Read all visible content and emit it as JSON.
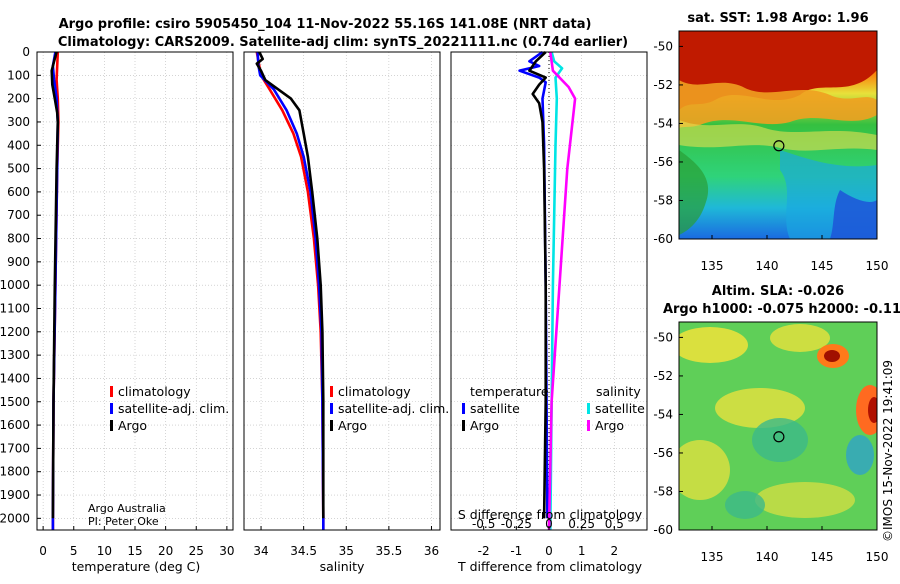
{
  "header": {
    "title_line1": "Argo profile: csiro 5905450_104 11-Nov-2022 55.16S 141.08E (NRT data)",
    "title_line2": "Climatology: CARS2009. Satellite-adj clim: synTS_20221111.nc (0.74d earlier)"
  },
  "colors": {
    "climatology": "#ff0000",
    "satellite": "#0000ff",
    "argo": "#000000",
    "sal_satellite": "#00e5e5",
    "sal_argo": "#ff00ff"
  },
  "chart_data": [
    {
      "type": "line",
      "id": "temperature",
      "xlabel": "temperature (deg C)",
      "ylabel": "depth",
      "xlim": [
        -1,
        31
      ],
      "ylim": [
        0,
        2050
      ],
      "xticks": [
        0,
        5,
        10,
        15,
        20,
        25,
        30
      ],
      "yticks": [
        0,
        100,
        200,
        300,
        400,
        500,
        600,
        700,
        800,
        900,
        1000,
        1100,
        1200,
        1300,
        1400,
        1500,
        1600,
        1700,
        1800,
        1900,
        2000
      ],
      "legend": [
        "climatology",
        "satellite-adj. clim.",
        "Argo"
      ],
      "credit": [
        "Argo Australia",
        "PI: Peter Oke"
      ],
      "series": [
        {
          "name": "climatology",
          "points": [
            [
              2.4,
              0
            ],
            [
              2.3,
              60
            ],
            [
              2.2,
              120
            ],
            [
              2.4,
              200
            ],
            [
              2.5,
              300
            ],
            [
              2.3,
              500
            ],
            [
              2.0,
              1000
            ],
            [
              1.7,
              1500
            ],
            [
              1.6,
              2000
            ],
            [
              1.6,
              2050
            ]
          ]
        },
        {
          "name": "satellite-adj. clim.",
          "points": [
            [
              2.0,
              0
            ],
            [
              1.6,
              60
            ],
            [
              1.8,
              120
            ],
            [
              2.2,
              200
            ],
            [
              2.4,
              300
            ],
            [
              2.3,
              500
            ],
            [
              2.0,
              1000
            ],
            [
              1.7,
              1500
            ],
            [
              1.6,
              2000
            ],
            [
              1.6,
              2050
            ]
          ]
        },
        {
          "name": "Argo",
          "points": [
            [
              2.2,
              0
            ],
            [
              1.8,
              40
            ],
            [
              1.4,
              80
            ],
            [
              1.5,
              140
            ],
            [
              1.9,
              200
            ],
            [
              2.3,
              260
            ],
            [
              2.4,
              300
            ],
            [
              2.2,
              500
            ],
            [
              1.9,
              1000
            ],
            [
              1.7,
              1500
            ],
            [
              1.6,
              2000
            ]
          ]
        }
      ]
    },
    {
      "type": "line",
      "id": "salinity",
      "xlabel": "salinity",
      "ylabel": "depth",
      "xlim": [
        33.8,
        36.1
      ],
      "ylim": [
        0,
        2050
      ],
      "xticks": [
        34,
        34.5,
        35,
        35.5,
        36
      ],
      "xtick_labels": [
        "34",
        "34.5",
        "35",
        "35.5",
        "36"
      ],
      "legend": [
        "climatology",
        "satellite-adj. clim.",
        "Argo"
      ],
      "series": [
        {
          "name": "climatology",
          "points": [
            [
              33.95,
              0
            ],
            [
              33.98,
              60
            ],
            [
              34.0,
              100
            ],
            [
              34.1,
              160
            ],
            [
              34.25,
              250
            ],
            [
              34.38,
              350
            ],
            [
              34.47,
              450
            ],
            [
              34.55,
              600
            ],
            [
              34.62,
              800
            ],
            [
              34.67,
              1000
            ],
            [
              34.7,
              1200
            ],
            [
              34.72,
              1500
            ],
            [
              34.73,
              2000
            ],
            [
              34.73,
              2050
            ]
          ]
        },
        {
          "name": "satellite-adj. clim.",
          "points": [
            [
              33.96,
              0
            ],
            [
              33.97,
              60
            ],
            [
              33.99,
              100
            ],
            [
              34.15,
              160
            ],
            [
              34.3,
              250
            ],
            [
              34.42,
              350
            ],
            [
              34.5,
              450
            ],
            [
              34.58,
              600
            ],
            [
              34.64,
              800
            ],
            [
              34.68,
              1000
            ],
            [
              34.71,
              1200
            ],
            [
              34.72,
              1500
            ],
            [
              34.73,
              2000
            ],
            [
              34.73,
              2050
            ]
          ]
        },
        {
          "name": "Argo",
          "points": [
            [
              33.98,
              0
            ],
            [
              34.02,
              30
            ],
            [
              33.95,
              50
            ],
            [
              34.0,
              80
            ],
            [
              34.05,
              120
            ],
            [
              34.2,
              160
            ],
            [
              34.35,
              200
            ],
            [
              34.45,
              250
            ],
            [
              34.5,
              350
            ],
            [
              34.55,
              450
            ],
            [
              34.6,
              600
            ],
            [
              34.66,
              800
            ],
            [
              34.7,
              1000
            ],
            [
              34.72,
              1200
            ],
            [
              34.73,
              1500
            ],
            [
              34.73,
              2000
            ]
          ]
        }
      ]
    },
    {
      "type": "line",
      "id": "differences",
      "xlabel": "T difference from climatology",
      "top_xlabel": "S difference from climatology",
      "xlim": [
        -3,
        3
      ],
      "ylim": [
        0,
        2050
      ],
      "xticks": [
        -2,
        -1,
        0,
        1,
        2
      ],
      "xtick_labels": [
        "-2",
        "-1",
        "0",
        "1",
        "2"
      ],
      "top_xlim": [
        -0.75,
        0.75
      ],
      "top_xticks": [
        -0.5,
        -0.25,
        0,
        0.25,
        0.5
      ],
      "top_xtick_labels": [
        "-0.5",
        "-0.25",
        "0",
        "0.25",
        "0.5"
      ],
      "legend_temperature_title": "temperature",
      "legend_salinity_title": "salinity",
      "legend_temperature": [
        "satellite",
        "Argo"
      ],
      "legend_salinity": [
        "satellite",
        "Argo"
      ],
      "series": [
        {
          "name": "T satellite",
          "axis": "T",
          "points": [
            [
              -0.2,
              0
            ],
            [
              -0.6,
              40
            ],
            [
              -0.3,
              60
            ],
            [
              -0.9,
              80
            ],
            [
              -0.3,
              110
            ],
            [
              -0.1,
              130
            ],
            [
              -0.2,
              200
            ],
            [
              -0.15,
              400
            ],
            [
              -0.1,
              1000
            ],
            [
              -0.05,
              2000
            ]
          ]
        },
        {
          "name": "T Argo",
          "axis": "T",
          "points": [
            [
              -0.1,
              0
            ],
            [
              -0.4,
              40
            ],
            [
              -0.6,
              80
            ],
            [
              -0.1,
              110
            ],
            [
              -0.3,
              140
            ],
            [
              -0.5,
              180
            ],
            [
              -0.3,
              220
            ],
            [
              -0.2,
              300
            ],
            [
              -0.15,
              500
            ],
            [
              -0.1,
              1000
            ],
            [
              -0.1,
              1500
            ],
            [
              -0.15,
              2000
            ]
          ]
        },
        {
          "name": "S satellite",
          "axis": "S",
          "points": [
            [
              0.02,
              0
            ],
            [
              0.04,
              40
            ],
            [
              0.1,
              70
            ],
            [
              0.05,
              110
            ],
            [
              0.06,
              200
            ],
            [
              0.05,
              400
            ],
            [
              0.03,
              1000
            ],
            [
              0.01,
              2050
            ]
          ]
        },
        {
          "name": "S Argo",
          "axis": "S",
          "points": [
            [
              0.01,
              0
            ],
            [
              0.02,
              40
            ],
            [
              0.03,
              80
            ],
            [
              0.15,
              150
            ],
            [
              0.2,
              200
            ],
            [
              0.18,
              300
            ],
            [
              0.14,
              500
            ],
            [
              0.08,
              1000
            ],
            [
              0.02,
              1500
            ],
            [
              0.0,
              2050
            ]
          ]
        }
      ]
    },
    {
      "type": "heatmap",
      "id": "sst-map",
      "title": "sat. SST: 1.98 Argo: 1.96",
      "xlim": [
        132,
        150
      ],
      "ylim": [
        -60,
        -49
      ],
      "xticks": [
        135,
        140,
        145,
        150
      ],
      "yticks": [
        -50,
        -52,
        -54,
        -56,
        -58,
        -60
      ],
      "marker": {
        "lon": 141.08,
        "lat": -55.16
      }
    },
    {
      "type": "heatmap",
      "id": "sla-map",
      "title_line1": "Altim. SLA: -0.026",
      "title_line2": "Argo h1000: -0.075 h2000: -0.11",
      "xlim": [
        132,
        150
      ],
      "ylim": [
        -60,
        -49
      ],
      "xticks": [
        135,
        140,
        145,
        150
      ],
      "yticks": [
        -50,
        -52,
        -54,
        -56,
        -58,
        -60
      ],
      "marker": {
        "lon": 141.08,
        "lat": -55.16
      }
    }
  ],
  "footer": {
    "stamp": "©IMOS 15-Nov-2022 19:41:09"
  }
}
